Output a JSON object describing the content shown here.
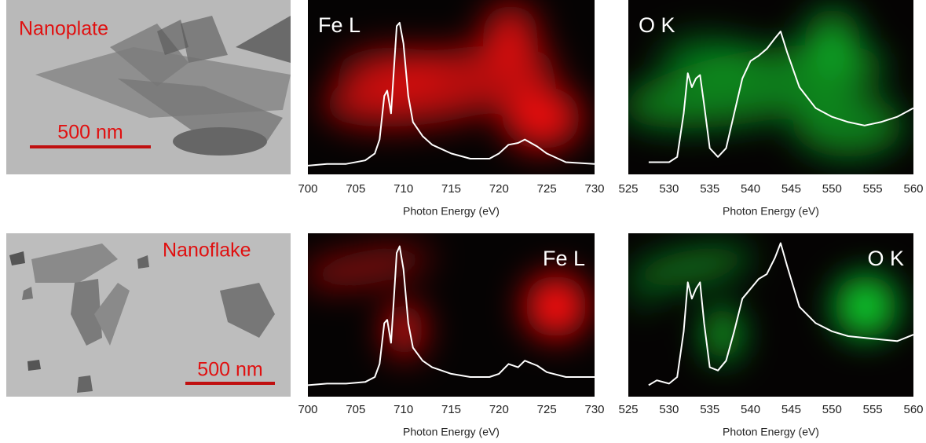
{
  "images": [
    {
      "label": "Nanoplate",
      "scale_bar": "500 nm"
    },
    {
      "label": "Nanoflake",
      "scale_bar": "500 nm"
    }
  ],
  "chart_data": [
    {
      "type": "line",
      "title": "Fe L",
      "xlabel": "Photon Energy (eV)",
      "xlim": [
        700,
        730
      ],
      "xticks": [
        700,
        705,
        710,
        715,
        720,
        725,
        730
      ],
      "ylim": [
        0,
        1
      ],
      "series": [
        {
          "color": "#ffffff",
          "x": [
            700,
            702,
            704,
            706,
            707,
            707.5,
            708,
            708.3,
            708.7,
            709,
            709.3,
            709.6,
            710,
            710.5,
            711,
            712,
            713,
            715,
            717,
            719,
            720,
            721,
            722,
            722.7,
            724,
            725,
            727,
            730
          ],
          "values": [
            0.05,
            0.06,
            0.06,
            0.08,
            0.12,
            0.2,
            0.45,
            0.48,
            0.35,
            0.6,
            0.85,
            0.87,
            0.75,
            0.45,
            0.3,
            0.22,
            0.17,
            0.12,
            0.09,
            0.09,
            0.12,
            0.17,
            0.18,
            0.2,
            0.16,
            0.12,
            0.07,
            0.06
          ]
        }
      ]
    },
    {
      "type": "line",
      "title": "O K",
      "xlabel": "Photon Energy (eV)",
      "xlim": [
        525,
        560
      ],
      "xticks": [
        525,
        530,
        535,
        540,
        545,
        550,
        555,
        560
      ],
      "ylim": [
        0,
        1
      ],
      "series": [
        {
          "color": "#ffffff",
          "x": [
            527.5,
            530,
            531,
            531.8,
            532.3,
            532.8,
            533.3,
            533.8,
            534.3,
            535,
            536,
            537,
            538,
            539,
            540,
            541,
            542,
            543,
            543.7,
            544.5,
            546,
            548,
            550,
            552,
            554,
            556,
            558,
            560
          ],
          "values": [
            0.07,
            0.07,
            0.1,
            0.35,
            0.58,
            0.5,
            0.55,
            0.57,
            0.4,
            0.15,
            0.1,
            0.15,
            0.35,
            0.55,
            0.65,
            0.68,
            0.72,
            0.78,
            0.82,
            0.7,
            0.5,
            0.38,
            0.33,
            0.3,
            0.28,
            0.3,
            0.33,
            0.38
          ]
        }
      ]
    },
    {
      "type": "line",
      "title": "Fe L",
      "xlabel": "Photon Energy (eV)",
      "xlim": [
        700,
        730
      ],
      "xticks": [
        700,
        705,
        710,
        715,
        720,
        725,
        730
      ],
      "ylim": [
        0,
        1
      ],
      "series": [
        {
          "color": "#ffffff",
          "x": [
            700,
            702,
            704,
            706,
            707,
            707.5,
            708,
            708.3,
            708.7,
            709,
            709.3,
            709.6,
            710,
            710.5,
            711,
            712,
            713,
            715,
            717,
            719,
            720,
            721,
            722,
            722.7,
            724,
            725,
            727,
            730
          ],
          "values": [
            0.07,
            0.08,
            0.08,
            0.09,
            0.12,
            0.2,
            0.45,
            0.47,
            0.33,
            0.6,
            0.88,
            0.92,
            0.78,
            0.45,
            0.3,
            0.22,
            0.18,
            0.14,
            0.12,
            0.12,
            0.14,
            0.2,
            0.18,
            0.22,
            0.19,
            0.15,
            0.12,
            0.12
          ]
        }
      ]
    },
    {
      "type": "line",
      "title": "O K",
      "xlabel": "Photon Energy (eV)",
      "xlim": [
        525,
        560
      ],
      "xticks": [
        525,
        530,
        535,
        540,
        545,
        550,
        555,
        560
      ],
      "ylim": [
        0,
        1
      ],
      "series": [
        {
          "color": "#ffffff",
          "x": [
            527.5,
            528.5,
            530,
            531,
            531.8,
            532.3,
            532.8,
            533.3,
            533.8,
            534.3,
            535,
            536,
            537,
            538,
            539,
            540,
            541,
            542,
            543,
            543.7,
            544.5,
            546,
            548,
            550,
            552,
            554,
            556,
            558,
            560
          ],
          "values": [
            0.07,
            0.1,
            0.08,
            0.12,
            0.4,
            0.7,
            0.6,
            0.66,
            0.7,
            0.45,
            0.18,
            0.16,
            0.22,
            0.4,
            0.6,
            0.66,
            0.72,
            0.75,
            0.85,
            0.94,
            0.8,
            0.55,
            0.45,
            0.4,
            0.37,
            0.36,
            0.35,
            0.34,
            0.38
          ]
        }
      ]
    }
  ]
}
